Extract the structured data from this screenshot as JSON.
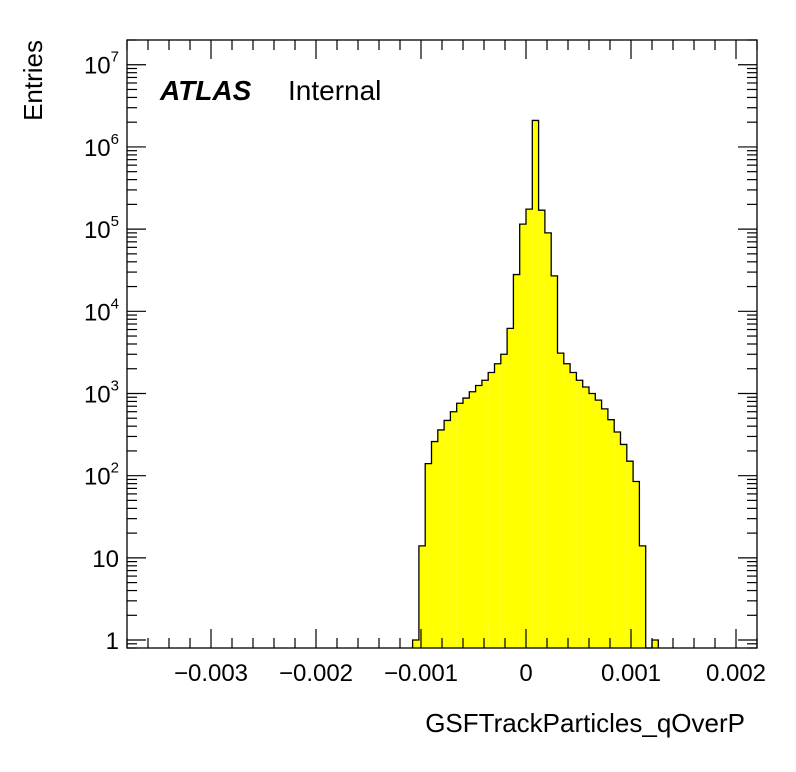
{
  "chart_data": {
    "type": "bar",
    "style": "histogram",
    "xlabel": "GSFTrackParticles_qOverP",
    "ylabel": "Entries",
    "x_scale": "linear",
    "y_scale": "log",
    "xlim": [
      -0.0038,
      0.0022
    ],
    "ylim": [
      0.8,
      20000000
    ],
    "x_ticks": [
      -0.003,
      -0.002,
      -0.001,
      0,
      0.001,
      0.002
    ],
    "x_tick_labels": [
      "−0.003",
      "−0.002",
      "−0.001",
      "0",
      "0.001",
      "0.002"
    ],
    "y_ticks": [
      1,
      10,
      100,
      1000,
      10000,
      100000,
      1000000,
      10000000
    ],
    "y_tick_labels": [
      {
        "base": "1",
        "exp": ""
      },
      {
        "base": "10",
        "exp": ""
      },
      {
        "base": "10",
        "exp": "2"
      },
      {
        "base": "10",
        "exp": "3"
      },
      {
        "base": "10",
        "exp": "4"
      },
      {
        "base": "10",
        "exp": "5"
      },
      {
        "base": "10",
        "exp": "6"
      },
      {
        "base": "10",
        "exp": "7"
      }
    ],
    "fill_color": "#ffff00",
    "line_color": "#000000",
    "bins": [
      {
        "low": -0.00108,
        "high": -0.00102,
        "value": 1
      },
      {
        "low": -0.00102,
        "high": -0.00096,
        "value": 14
      },
      {
        "low": -0.00096,
        "high": -0.0009,
        "value": 140
      },
      {
        "low": -0.0009,
        "high": -0.00084,
        "value": 260
      },
      {
        "low": -0.00084,
        "high": -0.00078,
        "value": 360
      },
      {
        "low": -0.00078,
        "high": -0.00072,
        "value": 470
      },
      {
        "low": -0.00072,
        "high": -0.00066,
        "value": 600
      },
      {
        "low": -0.00066,
        "high": -0.0006,
        "value": 760
      },
      {
        "low": -0.0006,
        "high": -0.00054,
        "value": 880
      },
      {
        "low": -0.00054,
        "high": -0.00048,
        "value": 1050
      },
      {
        "low": -0.00048,
        "high": -0.00042,
        "value": 1250
      },
      {
        "low": -0.00042,
        "high": -0.00036,
        "value": 1450
      },
      {
        "low": -0.00036,
        "high": -0.0003,
        "value": 1800
      },
      {
        "low": -0.0003,
        "high": -0.00024,
        "value": 2300
      },
      {
        "low": -0.00024,
        "high": -0.00018,
        "value": 3000
      },
      {
        "low": -0.00018,
        "high": -0.00012,
        "value": 6200
      },
      {
        "low": -0.00012,
        "high": -6e-05,
        "value": 28000
      },
      {
        "low": -6e-05,
        "high": 0.0,
        "value": 115000
      },
      {
        "low": 0.0,
        "high": 6e-05,
        "value": 175000
      },
      {
        "low": 6e-05,
        "high": 0.00012,
        "value": 2100000
      },
      {
        "low": 0.00012,
        "high": 0.00018,
        "value": 170000
      },
      {
        "low": 0.00018,
        "high": 0.00024,
        "value": 90000
      },
      {
        "low": 0.00024,
        "high": 0.0003,
        "value": 27000
      },
      {
        "low": 0.0003,
        "high": 0.00036,
        "value": 3100
      },
      {
        "low": 0.00036,
        "high": 0.00042,
        "value": 2300
      },
      {
        "low": 0.00042,
        "high": 0.00048,
        "value": 1800
      },
      {
        "low": 0.00048,
        "high": 0.00054,
        "value": 1450
      },
      {
        "low": 0.00054,
        "high": 0.0006,
        "value": 1200
      },
      {
        "low": 0.0006,
        "high": 0.00066,
        "value": 1000
      },
      {
        "low": 0.00066,
        "high": 0.00072,
        "value": 830
      },
      {
        "low": 0.00072,
        "high": 0.00078,
        "value": 650
      },
      {
        "low": 0.00078,
        "high": 0.00084,
        "value": 480
      },
      {
        "low": 0.00084,
        "high": 0.0009,
        "value": 340
      },
      {
        "low": 0.0009,
        "high": 0.00096,
        "value": 240
      },
      {
        "low": 0.00096,
        "high": 0.00102,
        "value": 150
      },
      {
        "low": 0.00102,
        "high": 0.00108,
        "value": 85
      },
      {
        "low": 0.00108,
        "high": 0.00114,
        "value": 14
      },
      {
        "low": 0.00114,
        "high": 0.0012,
        "value": 0
      },
      {
        "low": 0.0012,
        "high": 0.00126,
        "value": 1
      }
    ],
    "annotation": {
      "bold": "ATLAS",
      "normal": "Internal"
    }
  }
}
